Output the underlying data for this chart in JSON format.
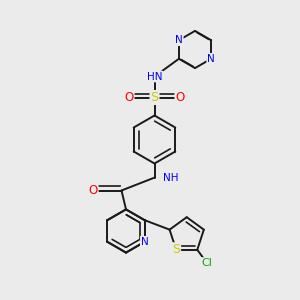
{
  "bg_color": "#ebebeb",
  "bond_color": "#1a1a1a",
  "bond_width": 1.4,
  "atom_colors": {
    "N": "#0000ff",
    "S": "#cccc00",
    "O": "#ff0000",
    "Cl": "#00aa00",
    "H": "#808080",
    "C": "#1a1a1a"
  },
  "font_size": 7.5,
  "fig_size": [
    3.0,
    3.0
  ],
  "dpi": 100
}
